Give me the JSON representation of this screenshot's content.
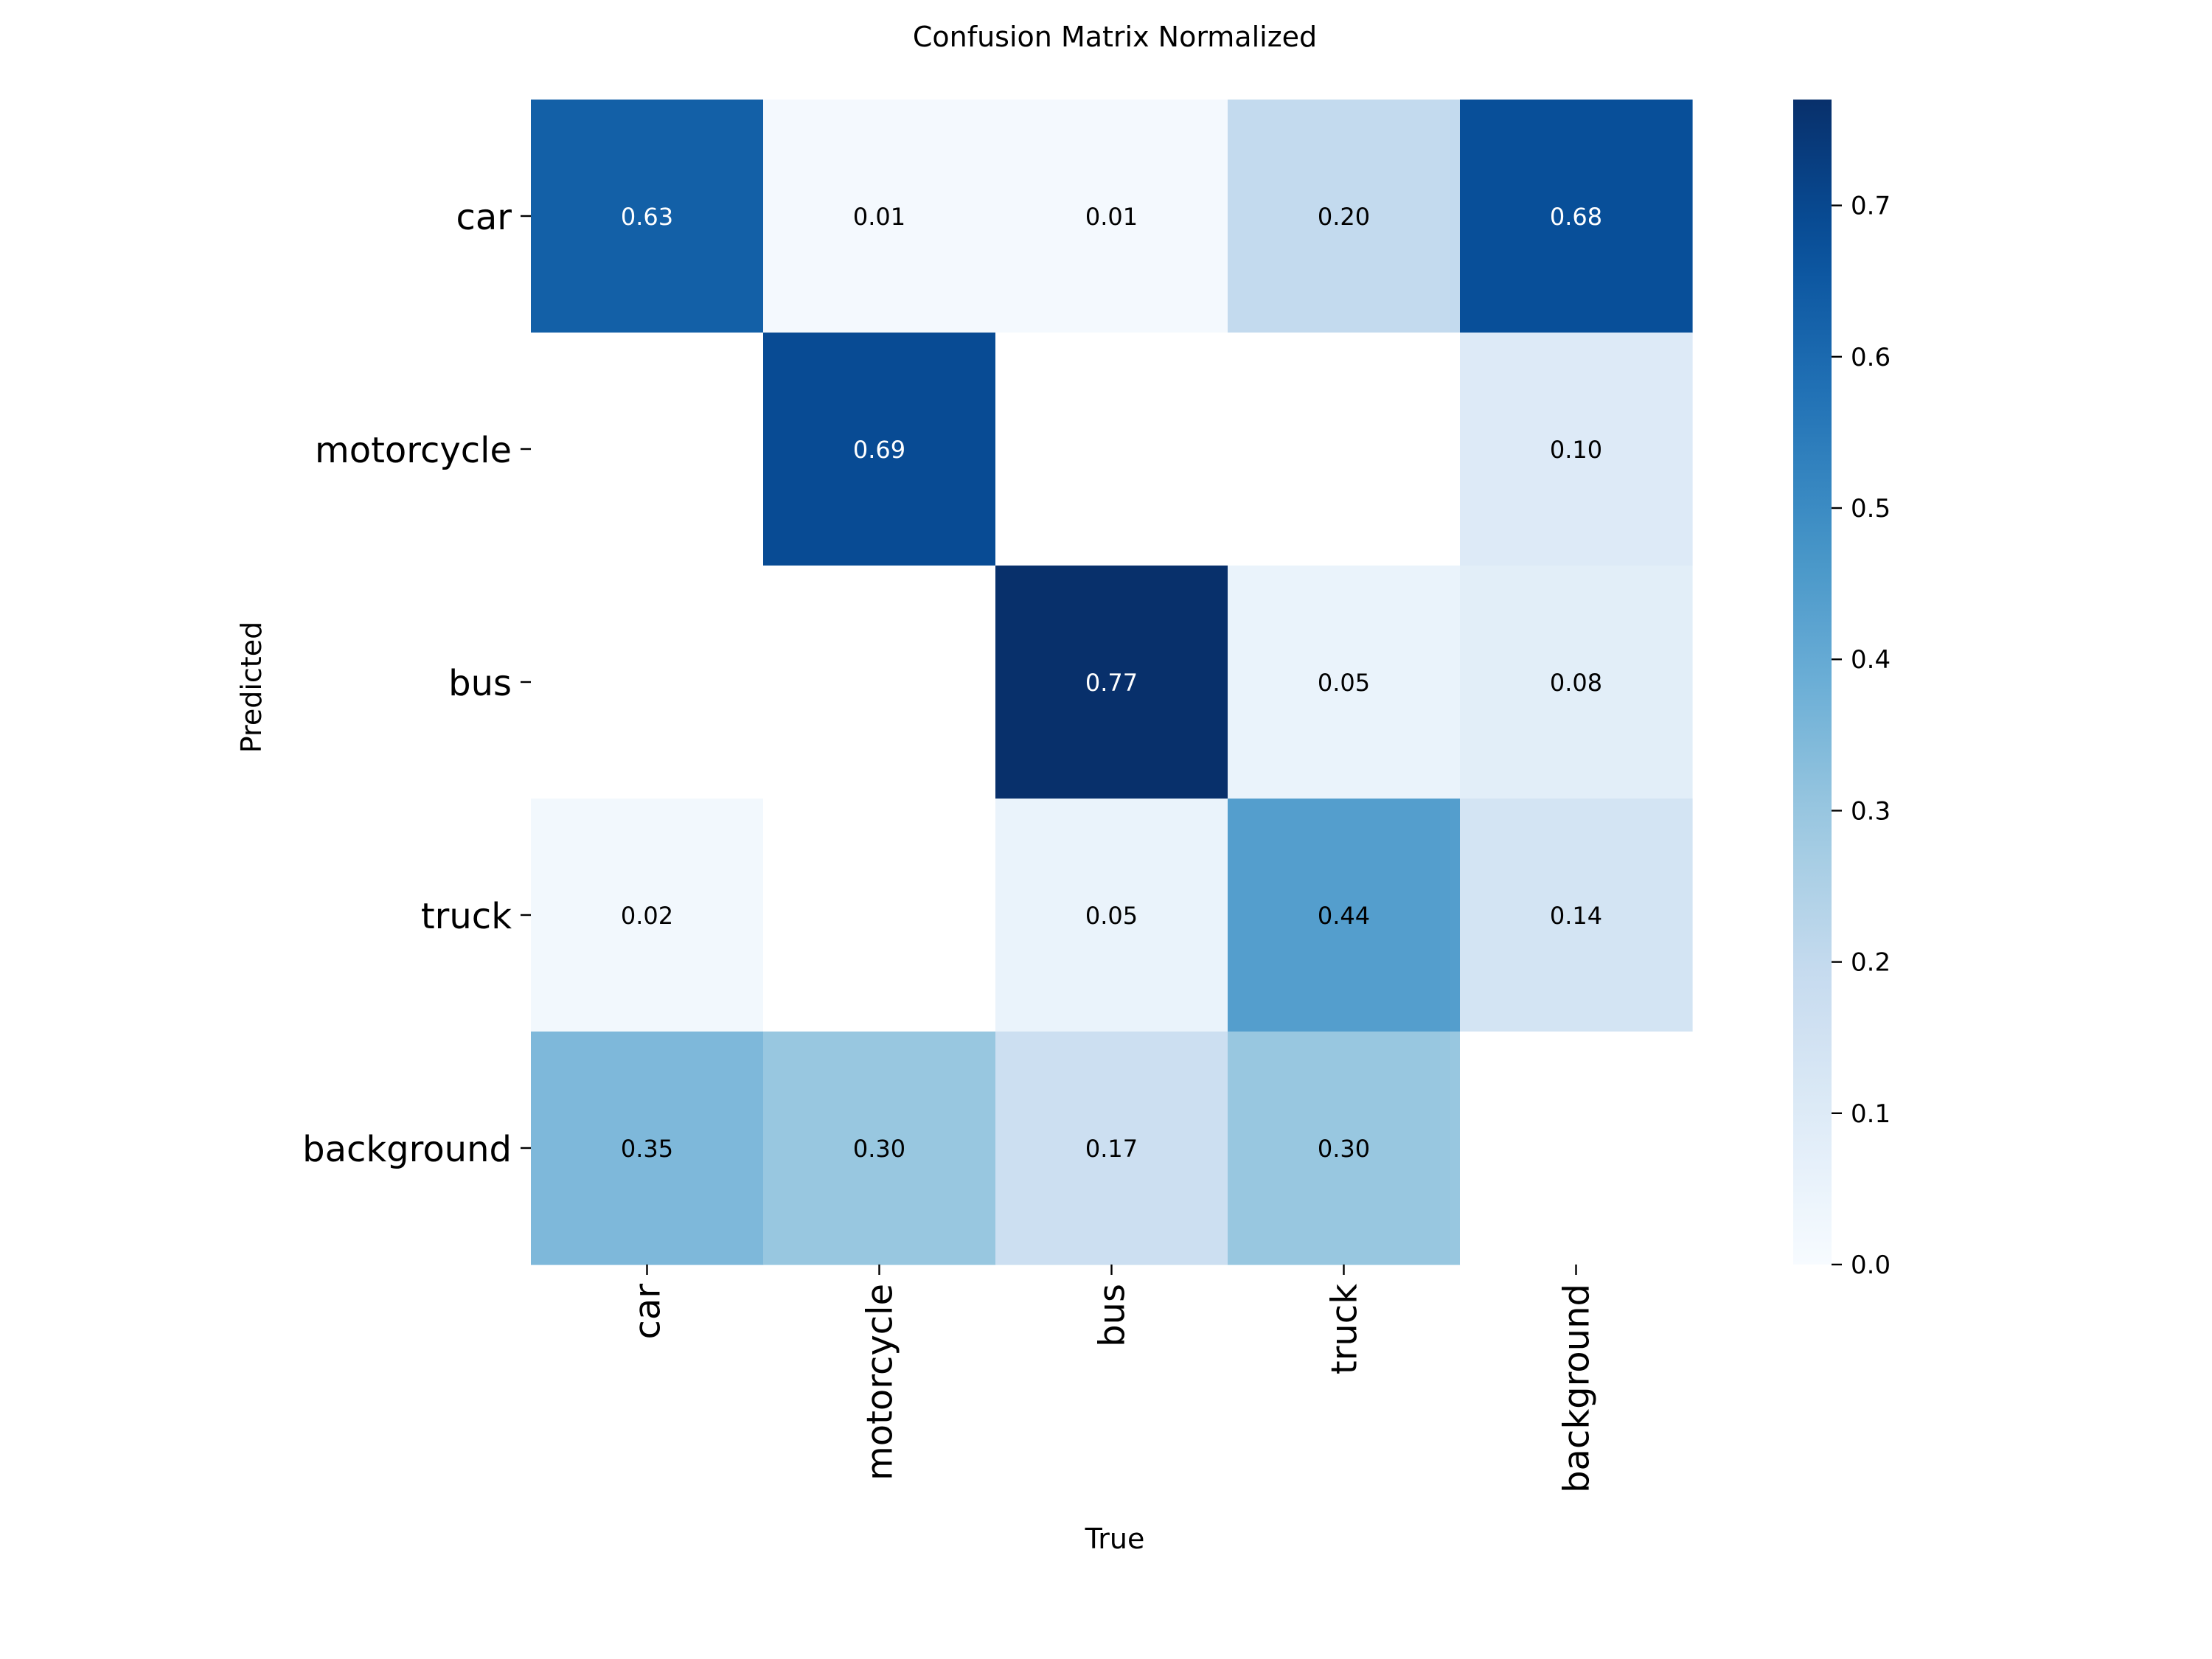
{
  "chart_data": {
    "type": "heatmap",
    "title": "Confusion Matrix Normalized",
    "xlabel": "True",
    "ylabel": "Predicted",
    "x_categories": [
      "car",
      "motorcycle",
      "bus",
      "truck",
      "background"
    ],
    "y_categories": [
      "car",
      "motorcycle",
      "bus",
      "truck",
      "background"
    ],
    "values": [
      [
        0.63,
        0.01,
        0.01,
        0.2,
        0.68
      ],
      [
        null,
        0.69,
        null,
        null,
        0.1
      ],
      [
        null,
        null,
        0.77,
        0.05,
        0.08
      ],
      [
        0.02,
        null,
        0.05,
        0.44,
        0.14
      ],
      [
        0.35,
        0.3,
        0.17,
        0.3,
        null
      ]
    ],
    "colormap": "Blues",
    "colorbar": {
      "vmin": 0.0,
      "vmax": 0.77,
      "ticks": [
        0.0,
        0.1,
        0.2,
        0.3,
        0.4,
        0.5,
        0.6,
        0.7
      ],
      "tick_labels": [
        "0.0",
        "0.1",
        "0.2",
        "0.3",
        "0.4",
        "0.5",
        "0.6",
        "0.7"
      ]
    },
    "empty_cell_color": "#ffffff",
    "grid": false
  }
}
